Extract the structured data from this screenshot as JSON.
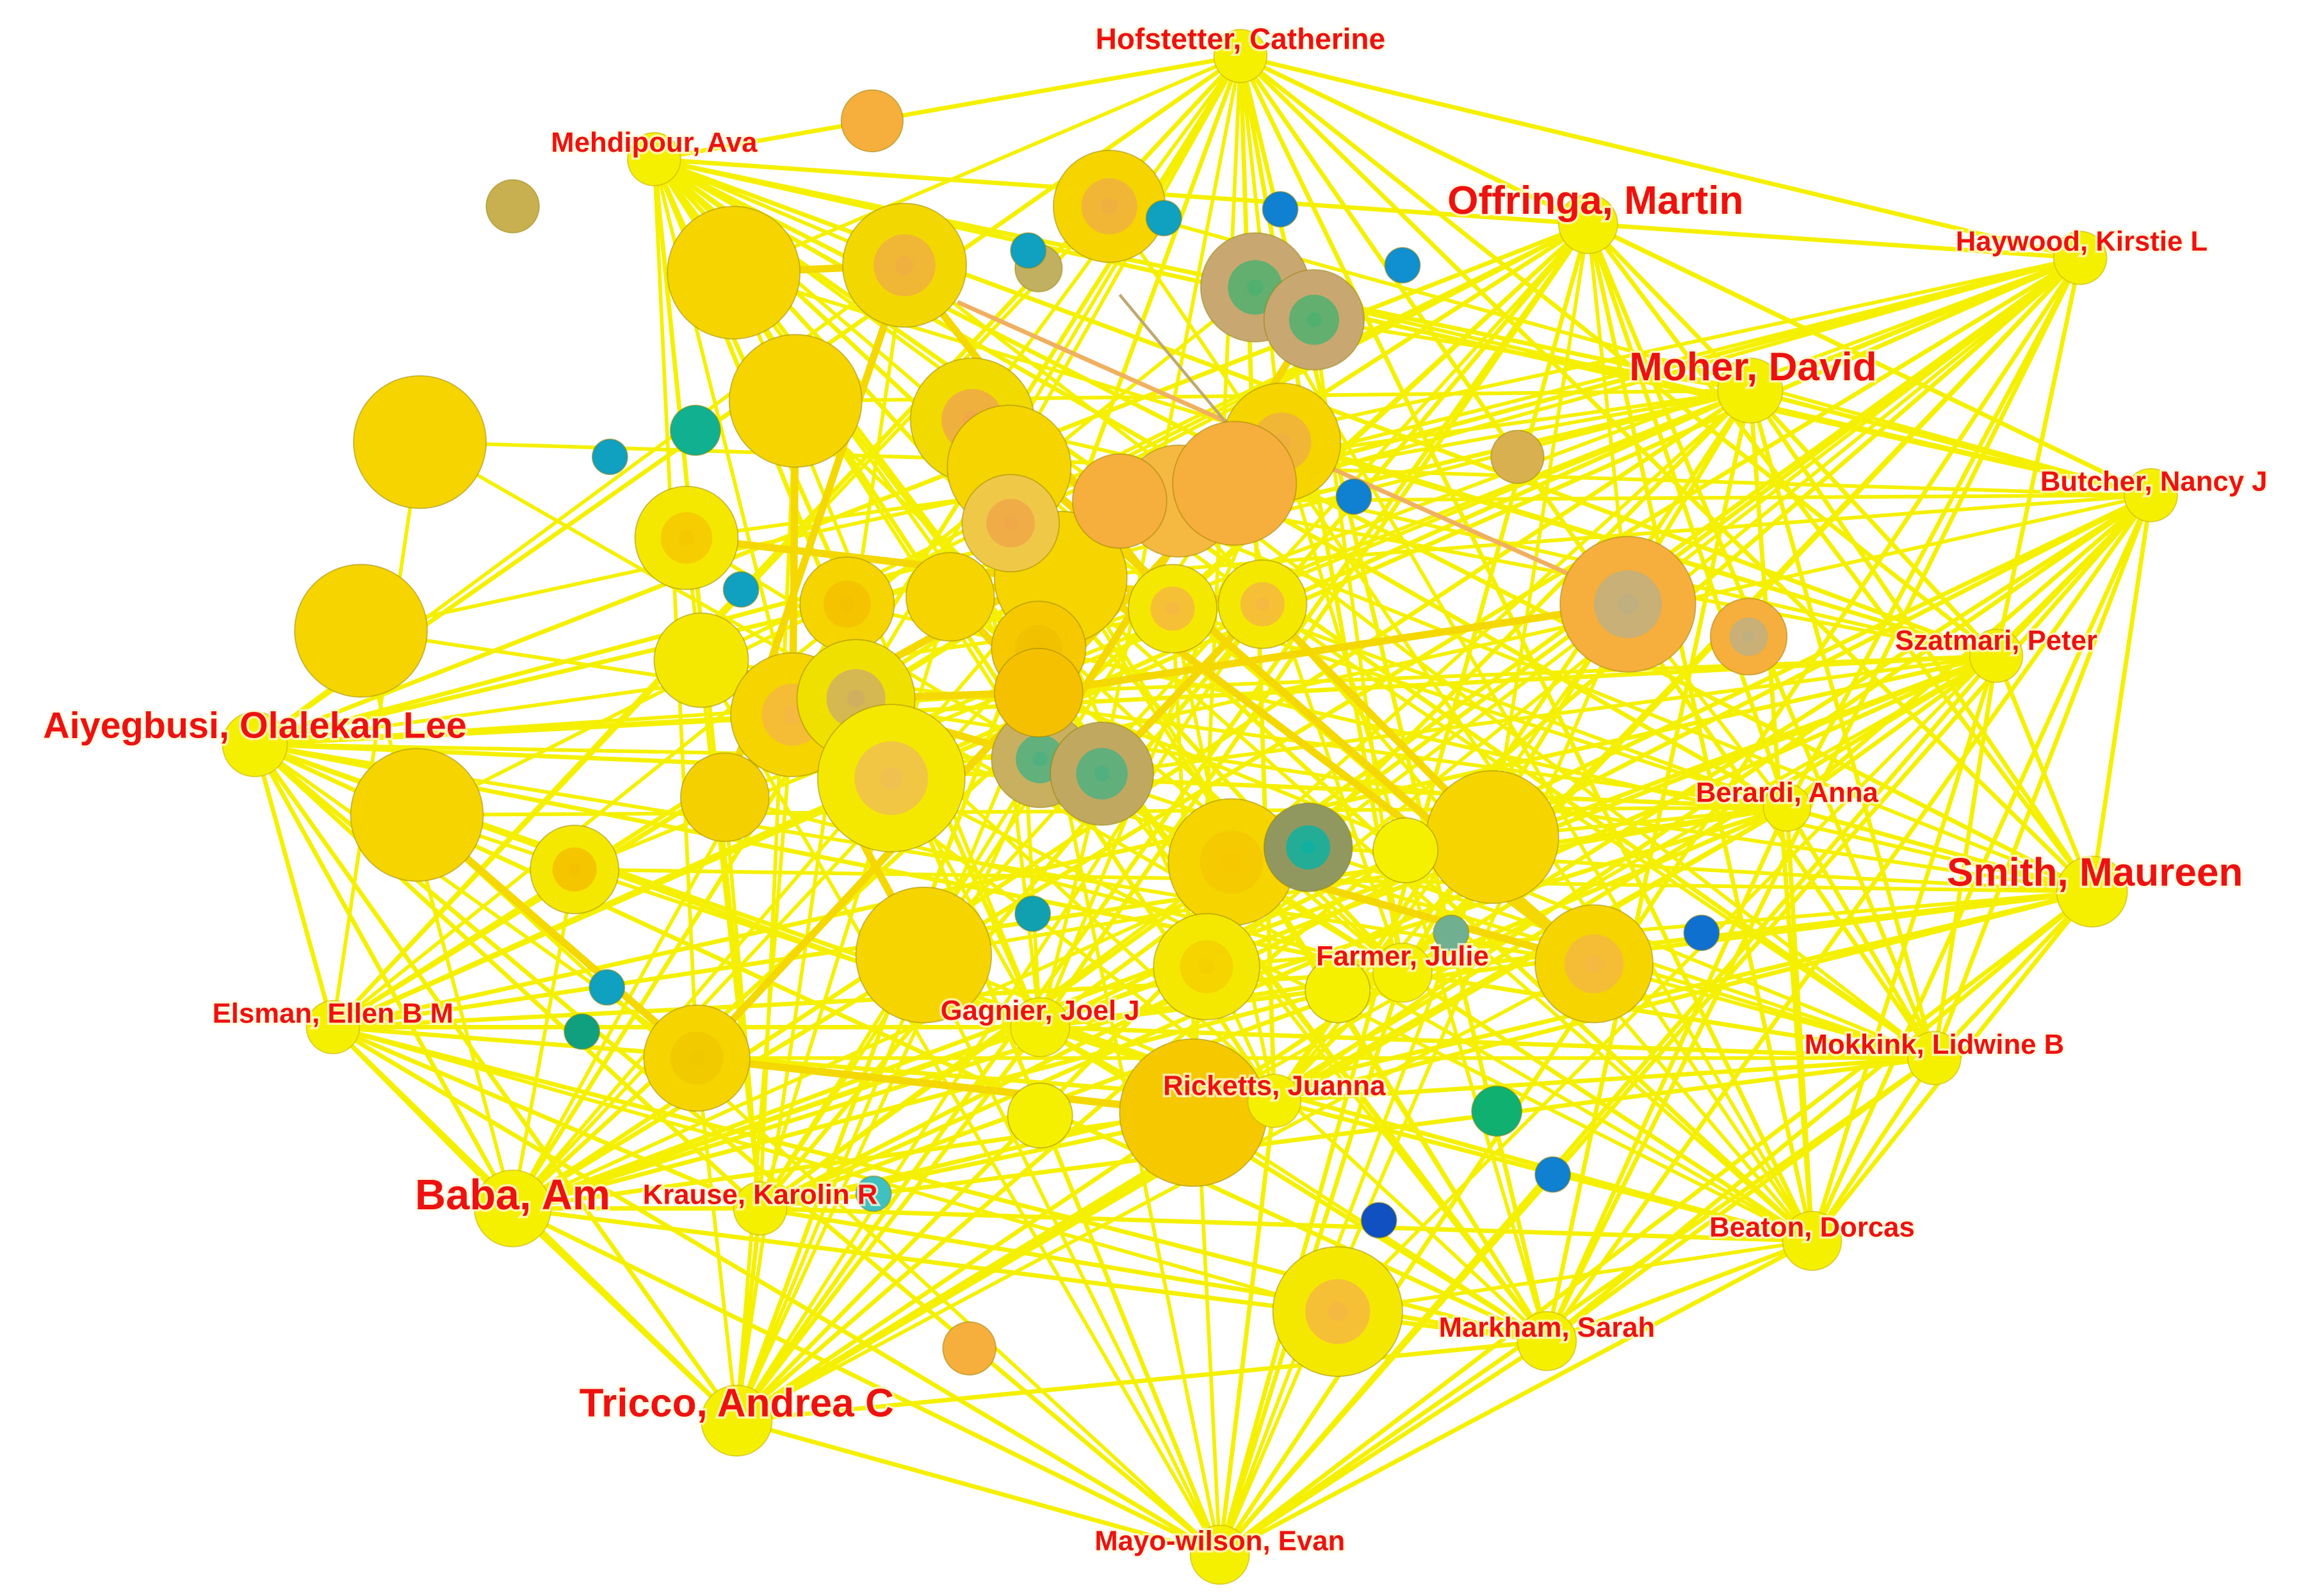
{
  "nodes": [
    {
      "label": "Hofstetter, Catherine"
    },
    {
      "label": "Mehdipour, Ava"
    },
    {
      "label": "Offringa, Martin"
    },
    {
      "label": "Haywood, Kirstie L"
    },
    {
      "label": "Moher, David"
    },
    {
      "label": "Butcher, Nancy J"
    },
    {
      "label": "Szatmari, Peter"
    },
    {
      "label": "Aiyegbusi, Olalekan Lee"
    },
    {
      "label": "Berardi, Anna"
    },
    {
      "label": "Smith, Maureen"
    },
    {
      "label": "Farmer, Julie"
    },
    {
      "label": "Elsman, Ellen B M"
    },
    {
      "label": "Gagnier, Joel J"
    },
    {
      "label": "Mokkink, Lidwine B"
    },
    {
      "label": "Ricketts, Juanna"
    },
    {
      "label": "Baba, Am"
    },
    {
      "label": "Krause, Karolin R"
    },
    {
      "label": "Beaton, Dorcas"
    },
    {
      "label": "Markham, Sarah"
    },
    {
      "label": "Tricco, Andrea C"
    },
    {
      "label": "Mayo-wilson, Evan"
    }
  ]
}
